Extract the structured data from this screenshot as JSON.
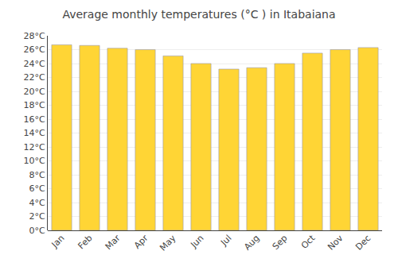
{
  "chart_data": {
    "type": "bar",
    "title": "Average monthly temperatures (°C ) in Itabaiana",
    "categories": [
      "Jan",
      "Feb",
      "Mar",
      "Apr",
      "May",
      "Jun",
      "Jul",
      "Aug",
      "Sep",
      "Oct",
      "Nov",
      "Dec"
    ],
    "values": [
      26.7,
      26.6,
      26.2,
      26.0,
      25.1,
      24.0,
      23.2,
      23.4,
      24.0,
      25.5,
      26.0,
      26.3
    ],
    "color": "#FFD535",
    "ylim": [
      0,
      28
    ],
    "yticks": [
      {
        "value": 0,
        "label": "0°C"
      },
      {
        "value": 2,
        "label": "2°C"
      },
      {
        "value": 4,
        "label": "4°C"
      },
      {
        "value": 6,
        "label": "6°C"
      },
      {
        "value": 8,
        "label": "8°C"
      },
      {
        "value": 10,
        "label": "10°C"
      },
      {
        "value": 12,
        "label": "12°C"
      },
      {
        "value": 14,
        "label": "14°C"
      },
      {
        "value": 16,
        "label": "16°C"
      },
      {
        "value": 18,
        "label": "18°C"
      },
      {
        "value": 20,
        "label": "20°C"
      },
      {
        "value": 22,
        "label": "22°C"
      },
      {
        "value": 24,
        "label": "24°C"
      },
      {
        "value": 26,
        "label": "26°C"
      },
      {
        "value": 28,
        "label": "28°C"
      }
    ],
    "grid": true
  }
}
